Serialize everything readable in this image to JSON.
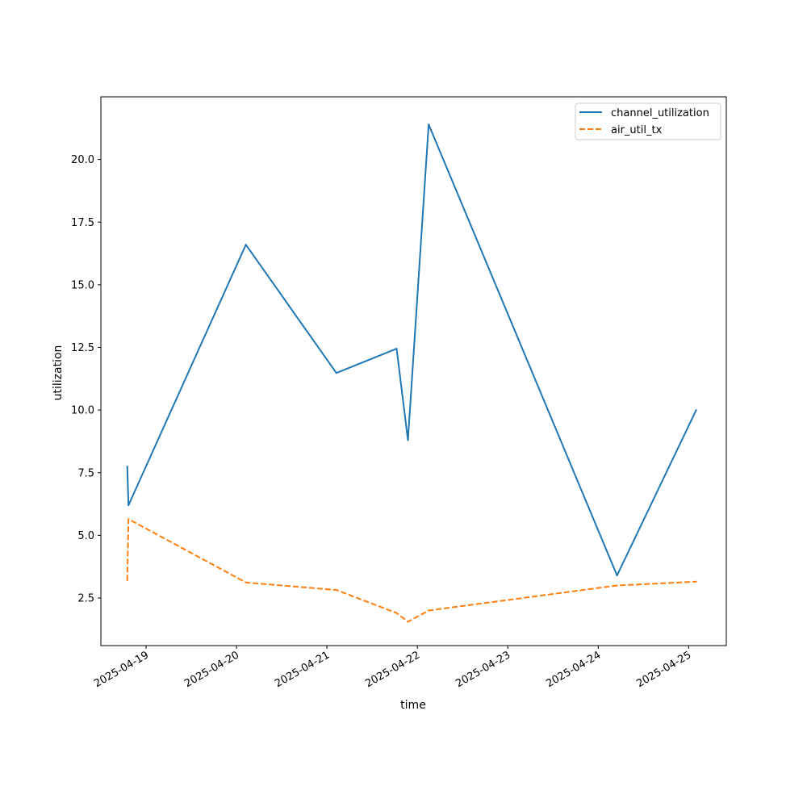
{
  "chart_data": {
    "type": "line",
    "title": "",
    "xlabel": "time",
    "ylabel": "utilization",
    "x_tick_labels": [
      "2025-04-19",
      "2025-04-20",
      "2025-04-21",
      "2025-04-22",
      "2025-04-23",
      "2025-04-24",
      "2025-04-25"
    ],
    "y_tick_labels": [
      "2.5",
      "5.0",
      "7.5",
      "10.0",
      "12.5",
      "15.0",
      "17.5",
      "20.0"
    ],
    "xlim": [
      "2025-04-18T12:00",
      "2025-04-25T10:00"
    ],
    "ylim": [
      0.6,
      22.5
    ],
    "grid": false,
    "legend_position": "top-right",
    "series": [
      {
        "name": "channel_utilization",
        "color": "#1f77b4",
        "style": "solid",
        "points": [
          {
            "x": "2025-04-18T19:00",
            "y": 7.75
          },
          {
            "x": "2025-04-18T19:20",
            "y": 6.2
          },
          {
            "x": "2025-04-20T02:30",
            "y": 16.6
          },
          {
            "x": "2025-04-21T02:30",
            "y": 11.48
          },
          {
            "x": "2025-04-21T18:30",
            "y": 12.45
          },
          {
            "x": "2025-04-21T21:30",
            "y": 8.8
          },
          {
            "x": "2025-04-22T03:00",
            "y": 21.4
          },
          {
            "x": "2025-04-24T05:00",
            "y": 3.4
          },
          {
            "x": "2025-04-25T02:00",
            "y": 10.0
          }
        ]
      },
      {
        "name": "air_util_tx",
        "color": "#ff7f0e",
        "style": "dashed",
        "points": [
          {
            "x": "2025-04-18T19:00",
            "y": 3.2
          },
          {
            "x": "2025-04-18T19:20",
            "y": 5.65
          },
          {
            "x": "2025-04-20T02:30",
            "y": 3.12
          },
          {
            "x": "2025-04-21T02:30",
            "y": 2.82
          },
          {
            "x": "2025-04-21T18:30",
            "y": 1.9
          },
          {
            "x": "2025-04-21T21:30",
            "y": 1.55
          },
          {
            "x": "2025-04-22T03:00",
            "y": 2.0
          },
          {
            "x": "2025-04-24T05:00",
            "y": 3.0
          },
          {
            "x": "2025-04-25T02:00",
            "y": 3.15
          }
        ]
      }
    ]
  }
}
